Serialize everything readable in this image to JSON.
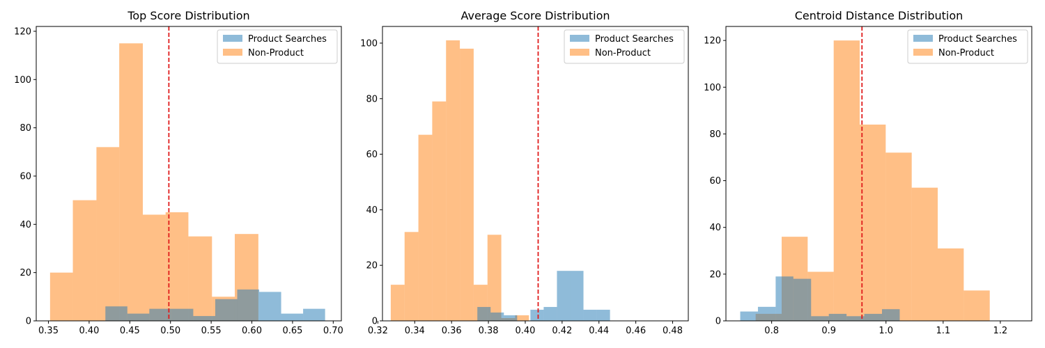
{
  "chart_data": [
    {
      "type": "histogram",
      "title": "Top Score Distribution",
      "xlim": [
        0.335,
        0.71
      ],
      "ylim": [
        0,
        122
      ],
      "xticks": [
        "0.35",
        "0.40",
        "0.45",
        "0.50",
        "0.55",
        "0.60",
        "0.65",
        "0.70"
      ],
      "yticks": [
        "0",
        "20",
        "40",
        "60",
        "80",
        "100",
        "120"
      ],
      "threshold": 0.498,
      "legend": {
        "position": "top-right"
      },
      "series": [
        {
          "name": "Non-Product",
          "color": "#ff7f0e",
          "alpha": 0.5,
          "bins": [
            [
              0.352,
              0.38,
              20
            ],
            [
              0.38,
              0.409,
              50
            ],
            [
              0.409,
              0.437,
              72
            ],
            [
              0.437,
              0.466,
              115
            ],
            [
              0.466,
              0.494,
              44
            ],
            [
              0.494,
              0.522,
              45
            ],
            [
              0.522,
              0.551,
              35
            ],
            [
              0.551,
              0.579,
              10
            ],
            [
              0.579,
              0.608,
              36
            ],
            [
              0.608,
              0.636,
              0
            ]
          ]
        },
        {
          "name": "Product Searches",
          "color": "#1f77b4",
          "alpha": 0.5,
          "bins": [
            [
              0.42,
              0.447,
              6
            ],
            [
              0.447,
              0.474,
              3
            ],
            [
              0.474,
              0.501,
              5
            ],
            [
              0.501,
              0.528,
              5
            ],
            [
              0.528,
              0.555,
              2
            ],
            [
              0.555,
              0.582,
              9
            ],
            [
              0.582,
              0.609,
              13
            ],
            [
              0.609,
              0.636,
              12
            ],
            [
              0.636,
              0.663,
              3
            ],
            [
              0.663,
              0.69,
              5
            ]
          ]
        }
      ]
    },
    {
      "type": "histogram",
      "title": "Average Score Distribution",
      "xlim": [
        0.3225,
        0.4885
      ],
      "ylim": [
        0,
        106
      ],
      "xticks": [
        "0.32",
        "0.34",
        "0.36",
        "0.38",
        "0.40",
        "0.42",
        "0.44",
        "0.46",
        "0.48"
      ],
      "yticks": [
        "0",
        "20",
        "40",
        "60",
        "80",
        "100"
      ],
      "threshold": 0.407,
      "legend": {
        "position": "top-right"
      },
      "series": [
        {
          "name": "Non-Product",
          "color": "#ff7f0e",
          "alpha": 0.5,
          "bins": [
            [
              0.327,
              0.3345,
              13
            ],
            [
              0.3345,
              0.342,
              32
            ],
            [
              0.342,
              0.3495,
              67
            ],
            [
              0.3495,
              0.357,
              79
            ],
            [
              0.357,
              0.3645,
              101
            ],
            [
              0.3645,
              0.372,
              98
            ],
            [
              0.372,
              0.3795,
              13
            ],
            [
              0.3795,
              0.387,
              31
            ],
            [
              0.387,
              0.3945,
              1
            ],
            [
              0.3945,
              0.402,
              2
            ]
          ]
        },
        {
          "name": "Product Searches",
          "color": "#1f77b4",
          "alpha": 0.5,
          "bins": [
            [
              0.374,
              0.3812,
              5
            ],
            [
              0.3812,
              0.3884,
              3
            ],
            [
              0.3884,
              0.3956,
              2
            ],
            [
              0.3956,
              0.4028,
              0
            ],
            [
              0.4028,
              0.41,
              4
            ],
            [
              0.41,
              0.4172,
              5
            ],
            [
              0.4172,
              0.4244,
              18
            ],
            [
              0.4244,
              0.4316,
              18
            ],
            [
              0.4316,
              0.4388,
              4
            ],
            [
              0.4388,
              0.446,
              4
            ]
          ]
        }
      ]
    },
    {
      "type": "histogram",
      "title": "Centroid Distance Distribution",
      "xlim": [
        0.72,
        1.255
      ],
      "ylim": [
        0,
        126
      ],
      "xticks": [
        "0.8",
        "0.9",
        "1.0",
        "1.1",
        "1.2"
      ],
      "yticks": [
        "0",
        "20",
        "40",
        "60",
        "80",
        "100",
        "120"
      ],
      "threshold": 0.958,
      "legend": {
        "position": "top-right"
      },
      "series": [
        {
          "name": "Non-Product",
          "color": "#ff7f0e",
          "alpha": 0.5,
          "bins": [
            [
              0.772,
              0.8175,
              3
            ],
            [
              0.8175,
              0.863,
              36
            ],
            [
              0.863,
              0.9085,
              21
            ],
            [
              0.9085,
              0.954,
              120
            ],
            [
              0.954,
              0.9995,
              84
            ],
            [
              0.9995,
              1.045,
              72
            ],
            [
              1.045,
              1.0905,
              57
            ],
            [
              1.0905,
              1.136,
              31
            ],
            [
              1.136,
              1.1815,
              13
            ],
            [
              1.1815,
              1.227,
              0
            ]
          ]
        },
        {
          "name": "Product Searches",
          "color": "#1f77b4",
          "alpha": 0.5,
          "bins": [
            [
              0.745,
              0.776,
              4
            ],
            [
              0.776,
              0.807,
              6
            ],
            [
              0.807,
              0.838,
              19
            ],
            [
              0.838,
              0.869,
              18
            ],
            [
              0.869,
              0.9,
              2
            ],
            [
              0.9,
              0.931,
              3
            ],
            [
              0.931,
              0.962,
              2
            ],
            [
              0.962,
              0.993,
              3
            ],
            [
              0.993,
              1.024,
              5
            ],
            [
              1.024,
              1.055,
              0
            ]
          ]
        }
      ]
    }
  ],
  "theme": {
    "threshold_color": "#e01b1b"
  }
}
